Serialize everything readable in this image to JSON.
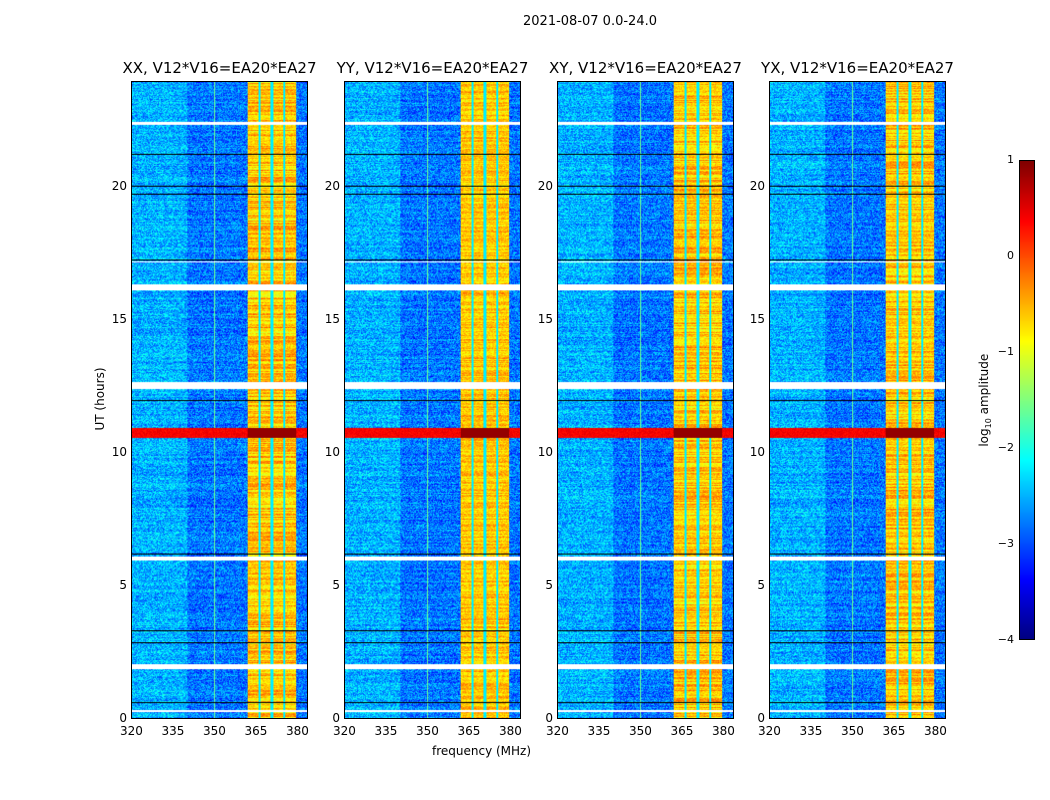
{
  "chart_data": {
    "type": "heatmap",
    "title": "2021-08-07 0.0-24.0",
    "xlabel": "frequency (MHz)",
    "ylabel": "UT (hours)",
    "xlim": [
      320,
      384
    ],
    "ylim": [
      0,
      24
    ],
    "xticks": [
      "320",
      "335",
      "350",
      "365",
      "380"
    ],
    "yticks": [
      "0",
      "5",
      "10",
      "15",
      "20"
    ],
    "panels": [
      {
        "title": "XX, V12*V16=EA20*EA27"
      },
      {
        "title": "YY, V12*V16=EA20*EA27"
      },
      {
        "title": "XY, V12*V16=EA20*EA27"
      },
      {
        "title": "YX, V12*V16=EA20*EA27"
      }
    ],
    "colorbar": {
      "label_prefix": "log",
      "label_sub": "10",
      "label_suffix": " amplitude",
      "clim": [
        -4,
        1
      ],
      "ticks": [
        "1",
        "0",
        "−1",
        "−2",
        "−3",
        "−4"
      ],
      "colormap": "jet"
    },
    "background_level": -2.8,
    "band": {
      "range_mhz": [
        362,
        380
      ],
      "level": -0.6,
      "gaps_mhz": [
        366.5,
        371,
        375.5
      ]
    },
    "rfi_rows_hours": [
      [
        10.6,
        10.95
      ]
    ],
    "flagged_rows_hours": [
      [
        0.25,
        0.32
      ],
      [
        1.85,
        2.05
      ],
      [
        5.95,
        6.1
      ],
      [
        12.45,
        12.7
      ],
      [
        16.15,
        16.4
      ],
      [
        22.4,
        22.5
      ],
      [
        17.2,
        17.25
      ]
    ]
  }
}
